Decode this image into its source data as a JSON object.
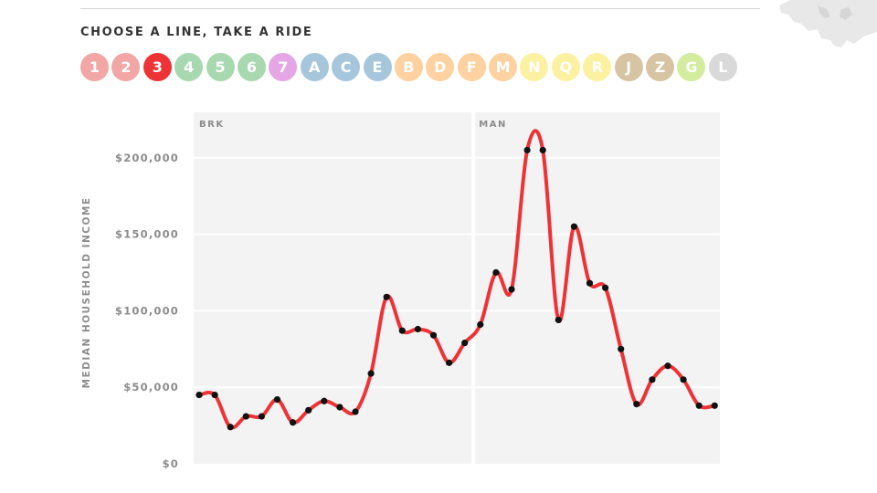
{
  "picker": {
    "heading": "CHOOSE A LINE, TAKE A RIDE",
    "selected": "3",
    "lines": [
      {
        "label": "1",
        "color": "#f2a6a6"
      },
      {
        "label": "2",
        "color": "#f2a6a6"
      },
      {
        "label": "3",
        "color": "#ee3336"
      },
      {
        "label": "4",
        "color": "#a7d8b0"
      },
      {
        "label": "5",
        "color": "#a7d8b0"
      },
      {
        "label": "6",
        "color": "#a7d8b0"
      },
      {
        "label": "7",
        "color": "#e5a6e5"
      },
      {
        "label": "A",
        "color": "#a6c6dc"
      },
      {
        "label": "C",
        "color": "#a6c6dc"
      },
      {
        "label": "E",
        "color": "#a6c6dc"
      },
      {
        "label": "B",
        "color": "#fdd1a0"
      },
      {
        "label": "D",
        "color": "#fdd1a0"
      },
      {
        "label": "F",
        "color": "#fdd1a0"
      },
      {
        "label": "M",
        "color": "#fdd1a0"
      },
      {
        "label": "N",
        "color": "#fcf1a1"
      },
      {
        "label": "Q",
        "color": "#fcf1a1"
      },
      {
        "label": "R",
        "color": "#fcf1a1"
      },
      {
        "label": "J",
        "color": "#d6c4a3"
      },
      {
        "label": "Z",
        "color": "#d6c4a3"
      },
      {
        "label": "G",
        "color": "#d3ec9e"
      },
      {
        "label": "L",
        "color": "#d9d9d9"
      }
    ]
  },
  "chart_data": {
    "type": "line",
    "title": "",
    "xlabel": "",
    "ylabel": "MEDIAN HOUSEHOLD INCOME",
    "ylim": [
      0,
      200000
    ],
    "y_ticks": [
      0,
      50000,
      100000,
      150000,
      200000
    ],
    "y_tick_labels": [
      "$0",
      "$50,000",
      "$100,000",
      "$150,000",
      "$200,000"
    ],
    "grid": true,
    "boroughs": [
      {
        "label": "BRK",
        "start_index": 0
      },
      {
        "label": "MAN",
        "start_index": 18
      }
    ],
    "series": [
      {
        "color": "#ee3336",
        "values": [
          45000,
          45000,
          24000,
          31000,
          31000,
          42000,
          27000,
          35000,
          41000,
          37000,
          34000,
          59000,
          109000,
          87000,
          88000,
          84000,
          66000,
          79000,
          91000,
          125000,
          114000,
          205000,
          205000,
          94000,
          155000,
          118000,
          115000,
          75000,
          39000,
          55000,
          64000,
          55000,
          38000,
          38000
        ]
      }
    ]
  }
}
